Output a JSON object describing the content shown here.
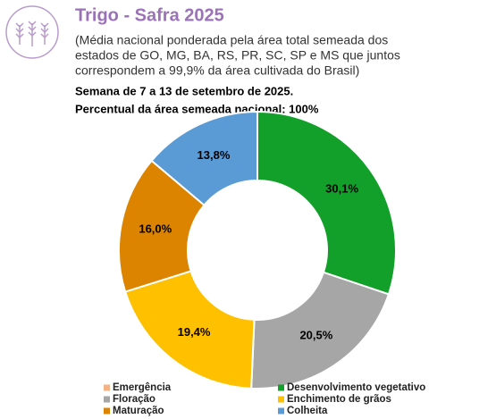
{
  "chart_data": {
    "type": "pie",
    "donut": true,
    "title": "Trigo - Safra 2025",
    "subtitle": [
      "(Média nacional ponderada pela área total semeada dos",
      "estados de GO, MG, BA, RS, PR, SC, SP e MS que juntos",
      "correspondem a 99,9% da área cultivada do Brasil)"
    ],
    "annotations": [
      "Semana de 7 a 13 de setembro de 2025.",
      "Percentual da área semeada nacional: 100%"
    ],
    "categories": [
      "Emergência",
      "Desenvolvimento vegetativo",
      "Floração",
      "Enchimento de grãos",
      "Maturação",
      "Colheita"
    ],
    "values": [
      0,
      30.1,
      20.5,
      19.4,
      16.0,
      13.8
    ],
    "value_labels": [
      null,
      "30,1%",
      "20,5%",
      "19,4%",
      "16,0%",
      "13,8%"
    ],
    "colors": [
      "#f4b183",
      "#13a02a",
      "#a6a6a6",
      "#ffc000",
      "#dc8400",
      "#5b9bd5"
    ]
  }
}
